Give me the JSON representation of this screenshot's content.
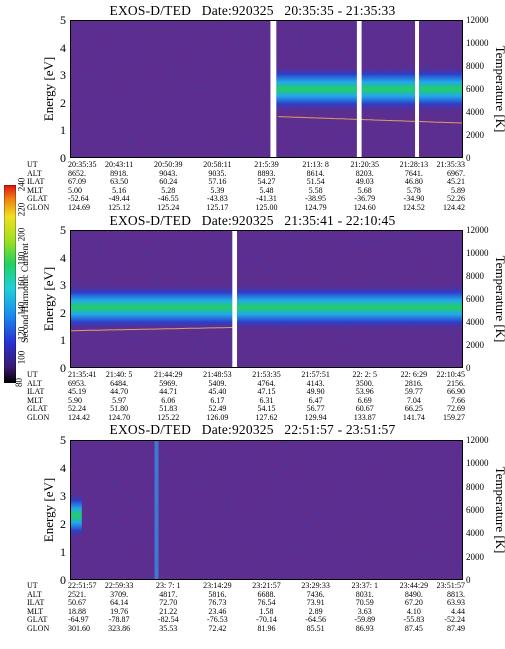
{
  "colors": {
    "background": "#5b2e8f",
    "green": "#22d060",
    "cyan": "#22a8ec",
    "blue": "#2e3ec9",
    "gap": "#ffffff"
  },
  "colorbar": {
    "title": "Second Harmonic Current",
    "ticks": [
      "80",
      "100",
      "120",
      "140",
      "160",
      "180",
      "200",
      "220",
      "240"
    ]
  },
  "chart_data": [
    {
      "type": "heatmap",
      "title": "EXOS-D/TED   Date:920325   20:35:35 - 21:35:33",
      "ylabel": "Energy [eV]",
      "y2label": "Temperature [K]",
      "ylim": [
        0,
        5
      ],
      "y2lim": [
        0,
        12000
      ],
      "yticks": [
        "0",
        "1",
        "2",
        "3",
        "4",
        "5"
      ],
      "y2ticks": [
        "0",
        "2000",
        "4000",
        "6000",
        "8000",
        "10000",
        "12000"
      ],
      "ephemeris": {
        "rows": [
          "UT",
          "ALT",
          "ILAT",
          "MLT",
          "GLAT",
          "GLON"
        ],
        "columns": [
          [
            "20:35:35",
            "8652.",
            "67.09",
            "5.00",
            "-52.64",
            "124.69"
          ],
          [
            "20:43:11",
            "8918.",
            "63.50",
            "5.16",
            "-49.44",
            "125.12"
          ],
          [
            "20:50:39",
            "9043.",
            "60.24",
            "5.28",
            "-46.55",
            "125.24"
          ],
          [
            "20:58:11",
            "9035.",
            "57.16",
            "5.39",
            "-43.83",
            "125.17"
          ],
          [
            "21:5:39",
            "8893.",
            "54.27",
            "5.48",
            "-41.31",
            "125.00"
          ],
          [
            "21:13: 8",
            "8614.",
            "51.54",
            "5.58",
            "-38.95",
            "124.79"
          ],
          [
            "21:20:35",
            "8203.",
            "49.03",
            "5.68",
            "-36.79",
            "124.60"
          ],
          [
            "21:28:13",
            "7641.",
            "46.80",
            "5.78",
            "-34.90",
            "124.52"
          ],
          [
            "21:35:33",
            "6967.",
            "45.21",
            "5.89",
            "52.26",
            "124.42"
          ]
        ]
      },
      "data_gaps_fraction": [
        [
          0.51,
          0.525
        ],
        [
          0.73,
          0.742
        ],
        [
          0.878,
          0.888
        ]
      ],
      "band": {
        "start_fraction": 0.525,
        "end_fraction": 1.0,
        "energy_center_eV": 2.5
      }
    },
    {
      "type": "heatmap",
      "title": "EXOS-D/TED   Date:920325   21:35:41 - 22:10:45",
      "ylabel": "Energy [eV]",
      "y2label": "Temperature [K]",
      "ylim": [
        0,
        5
      ],
      "y2lim": [
        0,
        12000
      ],
      "yticks": [
        "0",
        "1",
        "2",
        "3",
        "4",
        "5"
      ],
      "y2ticks": [
        "0",
        "2000",
        "4000",
        "6000",
        "8000",
        "10000",
        "12000"
      ],
      "ephemeris": {
        "rows": [
          "UT",
          "ALT",
          "ILAT",
          "MLT",
          "GLAT",
          "GLON"
        ],
        "columns": [
          [
            "21:35:41",
            "6953.",
            "45.19",
            "5.90",
            "52.24",
            "124.42"
          ],
          [
            "21:40: 5",
            "6484.",
            "44.70",
            "5.97",
            "51.80",
            "124.70"
          ],
          [
            "21:44:29",
            "5969.",
            "44.71",
            "6.06",
            "51.83",
            "125.22"
          ],
          [
            "21:48:53",
            "5409.",
            "45.40",
            "6.17",
            "52.49",
            "126.09"
          ],
          [
            "21:53:35",
            "4764.",
            "47.15",
            "6.31",
            "54.15",
            "127.62"
          ],
          [
            "21:57:51",
            "4143.",
            "49.90",
            "6.47",
            "56.77",
            "129.94"
          ],
          [
            "22: 2: 5",
            "3500.",
            "53.96",
            "6.69",
            "60.67",
            "133.87"
          ],
          [
            "22: 6:29",
            "2816.",
            "59.77",
            "7.04",
            "66.25",
            "141.74"
          ],
          [
            "22:10:45",
            "2156.",
            "66.90",
            "7.66",
            "72.69",
            "159.27"
          ]
        ]
      },
      "data_gaps_fraction": [
        [
          0.413,
          0.425
        ]
      ],
      "band": {
        "start_fraction": 0.0,
        "end_fraction": 1.0,
        "energy_center_eV": 2.2
      }
    },
    {
      "type": "heatmap",
      "title": "EXOS-D/TED   Date:920325   22:51:57 - 23:51:57",
      "ylabel": "Energy [eV]",
      "y2label": "Temperature [K]",
      "ylim": [
        0,
        5
      ],
      "y2lim": [
        0,
        12000
      ],
      "yticks": [
        "0",
        "1",
        "2",
        "3",
        "4",
        "5"
      ],
      "y2ticks": [
        "0",
        "2000",
        "4000",
        "6000",
        "8000",
        "10000",
        "12000"
      ],
      "ephemeris": {
        "rows": [
          "UT",
          "ALT",
          "ILAT",
          "MLT",
          "GLAT",
          "GLON"
        ],
        "columns": [
          [
            "22:51:57",
            "2521.",
            "50.67",
            "18.88",
            "-64.97",
            "301.60"
          ],
          [
            "22:59:33",
            "3709.",
            "64.14",
            "19.76",
            "-78.87",
            "323.86"
          ],
          [
            "23: 7: 1",
            "4817.",
            "72.70",
            "21.22",
            "-82.54",
            "35.53"
          ],
          [
            "23:14:29",
            "5816.",
            "76.73",
            "23.46",
            "-76.53",
            "72.42"
          ],
          [
            "23:21:57",
            "6688.",
            "76.54",
            "1.58",
            "-70.14",
            "81.96"
          ],
          [
            "23:29:33",
            "7436.",
            "73.91",
            "2.89",
            "-64.56",
            "85.51"
          ],
          [
            "23:37: 1",
            "8031.",
            "70.59",
            "3.63",
            "-59.89",
            "86.93"
          ],
          [
            "23:44:29",
            "8490.",
            "67.20",
            "4.10",
            "-55.83",
            "87.45"
          ],
          [
            "23:51:57",
            "8813.",
            "63.93",
            "4.44",
            "-52.24",
            "87.49"
          ]
        ]
      },
      "data_gaps_fraction": [],
      "band": {
        "start_fraction": 0.0,
        "end_fraction": 0.03,
        "energy_center_eV": 2.3
      }
    }
  ]
}
